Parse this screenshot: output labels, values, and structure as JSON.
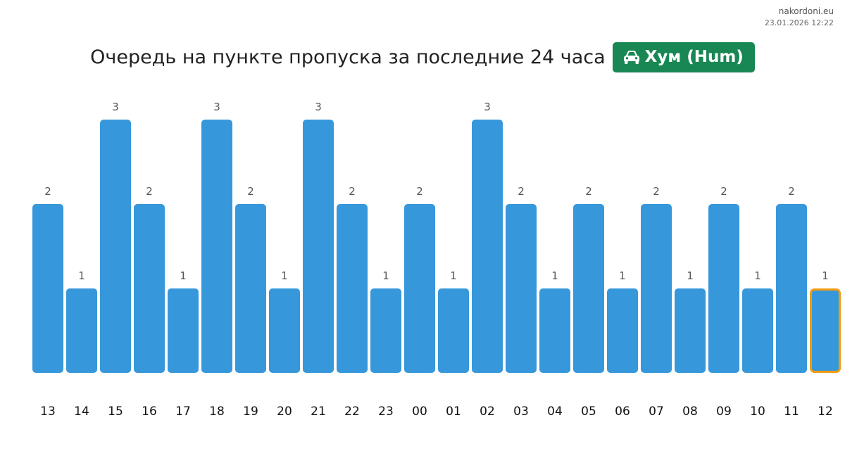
{
  "site": {
    "name": "nakordoni.eu",
    "date": "23.01.2026 12:22"
  },
  "header": {
    "title": "Очередь на пункте пропуска за последние 24 часа",
    "badge_icon": "car-icon",
    "badge_label": "Хум (Hum)",
    "badge_color": "#198754"
  },
  "chart_data": {
    "type": "bar",
    "categories": [
      "13",
      "14",
      "15",
      "16",
      "17",
      "18",
      "19",
      "20",
      "21",
      "22",
      "23",
      "00",
      "01",
      "02",
      "03",
      "04",
      "05",
      "06",
      "07",
      "08",
      "09",
      "10",
      "11",
      "12"
    ],
    "values": [
      2,
      1,
      3,
      2,
      1,
      3,
      2,
      1,
      3,
      2,
      1,
      2,
      1,
      3,
      2,
      1,
      2,
      1,
      2,
      1,
      2,
      1,
      2,
      1
    ],
    "highlight_index": 23,
    "bar_color": "#3797db",
    "highlight_border_color": "#f39c12",
    "ylim": [
      0,
      3
    ],
    "grid": false,
    "legend": "none",
    "data_labels": true
  }
}
